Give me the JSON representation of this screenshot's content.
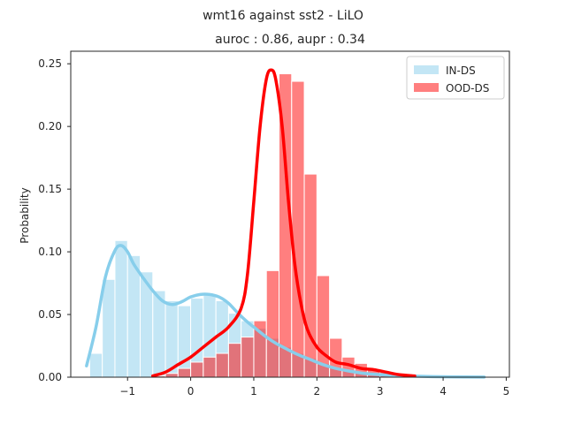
{
  "chart_data": {
    "type": "histogram",
    "suptitle": "wmt16 against sst2  - LiLO",
    "title": "auroc : 0.86, aupr : 0.34",
    "ylabel": "Probability",
    "xlim": [
      -1.9,
      5.05
    ],
    "ylim": [
      0,
      0.26
    ],
    "xticks": [
      -1,
      0,
      1,
      2,
      3,
      4,
      5
    ],
    "yticks": [
      0.0,
      0.05,
      0.1,
      0.15,
      0.2,
      0.25
    ],
    "xtick_labels": [
      "−1",
      "0",
      "1",
      "2",
      "3",
      "4",
      "5"
    ],
    "ytick_labels": [
      "0.00",
      "0.05",
      "0.10",
      "0.15",
      "0.20",
      "0.25"
    ],
    "bin_width": 0.2,
    "legend": {
      "position": "top-right"
    },
    "series": [
      {
        "name": "IN-DS",
        "color": "#87ceeb",
        "bar_opacity": 0.5,
        "bins_start": -1.6,
        "values": [
          0.019,
          0.078,
          0.109,
          0.097,
          0.084,
          0.069,
          0.061,
          0.057,
          0.063,
          0.066,
          0.061,
          0.051,
          0.045,
          0.039,
          0.031,
          0.024,
          0.019,
          0.015,
          0.011,
          0.008,
          0.006,
          0.004,
          0.003,
          0.002,
          0.0015,
          0.001,
          0.0008,
          0.0006,
          0.0005,
          0.0004,
          0.0003,
          0.0002
        ],
        "kde": {
          "x": [
            -1.65,
            -1.5,
            -1.35,
            -1.2,
            -1.1,
            -1.0,
            -0.9,
            -0.75,
            -0.6,
            -0.45,
            -0.3,
            -0.15,
            0,
            0.15,
            0.3,
            0.45,
            0.6,
            0.75,
            0.9,
            1.05,
            1.2,
            1.35,
            1.5,
            1.7,
            1.9,
            2.1,
            2.3,
            2.5,
            2.75,
            3.0,
            3.3,
            3.7,
            4.1,
            4.65
          ],
          "y": [
            0.009,
            0.04,
            0.08,
            0.101,
            0.105,
            0.1,
            0.09,
            0.079,
            0.069,
            0.061,
            0.058,
            0.06,
            0.064,
            0.066,
            0.066,
            0.064,
            0.059,
            0.051,
            0.044,
            0.038,
            0.032,
            0.027,
            0.023,
            0.018,
            0.014,
            0.01,
            0.007,
            0.005,
            0.003,
            0.002,
            0.0012,
            0.0006,
            0.0003,
            0.0001
          ]
        }
      },
      {
        "name": "OOD-DS",
        "color": "#ff0000",
        "bar_opacity": 0.5,
        "bins_start": -0.6,
        "values": [
          0.001,
          0.003,
          0.007,
          0.012,
          0.016,
          0.019,
          0.027,
          0.032,
          0.045,
          0.085,
          0.242,
          0.236,
          0.162,
          0.081,
          0.031,
          0.016,
          0.011,
          0.006,
          0.004,
          0.003,
          0.002
        ],
        "kde": {
          "x": [
            -0.6,
            -0.4,
            -0.2,
            0,
            0.2,
            0.4,
            0.6,
            0.8,
            0.9,
            1.0,
            1.1,
            1.2,
            1.28,
            1.35,
            1.45,
            1.55,
            1.65,
            1.75,
            1.85,
            2.0,
            2.15,
            2.3,
            2.5,
            2.7,
            2.9,
            3.1,
            3.3,
            3.55
          ],
          "y": [
            0.001,
            0.004,
            0.01,
            0.016,
            0.024,
            0.032,
            0.04,
            0.055,
            0.082,
            0.14,
            0.2,
            0.238,
            0.245,
            0.237,
            0.2,
            0.14,
            0.09,
            0.058,
            0.038,
            0.024,
            0.017,
            0.012,
            0.01,
            0.007,
            0.006,
            0.004,
            0.002,
            0.001
          ]
        }
      }
    ]
  }
}
